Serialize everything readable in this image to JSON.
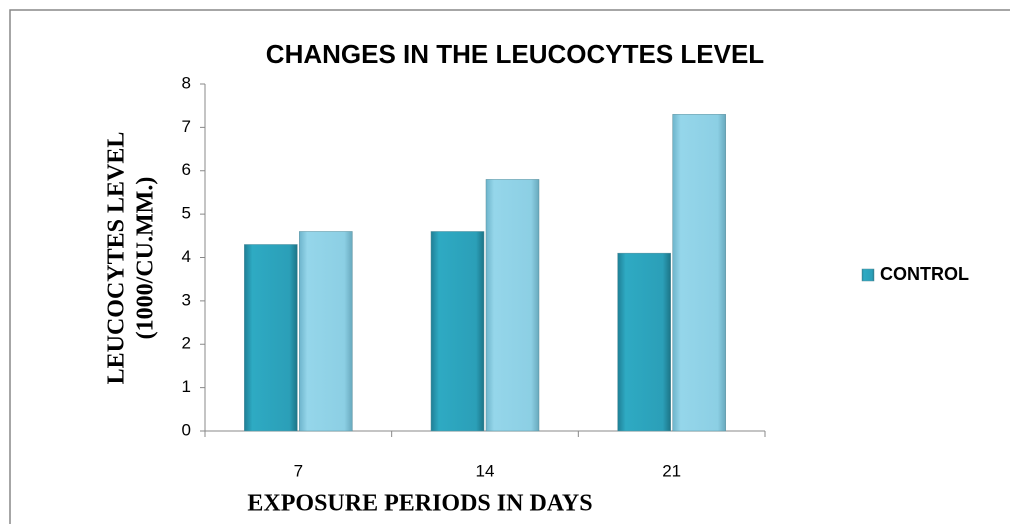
{
  "chart_data": {
    "type": "bar",
    "title": "CHANGES IN THE  LEUCOCYTES LEVEL",
    "xlabel": "EXPOSURE PERIODS IN DAYS",
    "ylabel": [
      "LEUCOCYTES LEVEL",
      "(1000/CU.MM.)"
    ],
    "categories": [
      "7",
      "14",
      "21"
    ],
    "series": [
      {
        "name": "CONTROL",
        "color": "#2b9fb8",
        "values": [
          4.3,
          4.6,
          4.1
        ]
      },
      {
        "color": "#8ccfe4",
        "values": [
          4.6,
          5.8,
          7.3
        ]
      }
    ],
    "ylim": [
      0,
      8
    ],
    "yticks": [
      0,
      1,
      2,
      3,
      4,
      5,
      6,
      7,
      8
    ],
    "grid": false,
    "legend": "right"
  }
}
